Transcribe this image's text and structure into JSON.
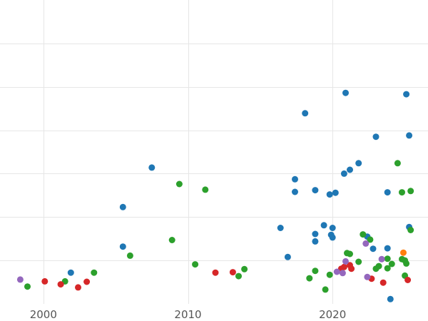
{
  "chart_data": {
    "type": "scatter",
    "title": "",
    "xlabel": "",
    "ylabel": "",
    "grid": true,
    "legend": "none",
    "xlim": [
      1997,
      2026.6
    ],
    "ylim": [
      0,
      7
    ],
    "x_ticks": [
      2000,
      2010,
      2020
    ],
    "x_tick_labels": [
      "2000",
      "2010",
      "2020"
    ],
    "y_gridlines": [
      1,
      2,
      3,
      4,
      5,
      6
    ],
    "colors": {
      "blue": "#1f77b4",
      "green": "#2ca02c",
      "red": "#d62728",
      "purple": "#9467bd",
      "orange": "#ff7f0e"
    },
    "series": [
      {
        "color": "#1f77b4",
        "points": [
          [
            2001.9,
            0.72
          ],
          [
            2005.5,
            1.32
          ],
          [
            2005.5,
            2.23
          ],
          [
            2007.5,
            3.14
          ],
          [
            2016.4,
            1.75
          ],
          [
            2016.9,
            1.08
          ],
          [
            2017.4,
            2.58
          ],
          [
            2017.4,
            2.87
          ],
          [
            2018.1,
            4.39
          ],
          [
            2018.8,
            1.44
          ],
          [
            2018.8,
            1.61
          ],
          [
            2018.8,
            2.62
          ],
          [
            2019.4,
            1.81
          ],
          [
            2019.8,
            2.52
          ],
          [
            2019.9,
            1.59
          ],
          [
            2020.0,
            1.75
          ],
          [
            2020.0,
            1.53
          ],
          [
            2020.2,
            2.56
          ],
          [
            2020.8,
            3.0
          ],
          [
            2020.9,
            4.86
          ],
          [
            2021.2,
            3.09
          ],
          [
            2021.8,
            3.24
          ],
          [
            2022.4,
            1.55
          ],
          [
            2022.8,
            1.27
          ],
          [
            2023.0,
            3.85
          ],
          [
            2023.8,
            2.57
          ],
          [
            2023.8,
            1.28
          ],
          [
            2024.0,
            0.11
          ],
          [
            2025.1,
            4.83
          ],
          [
            2025.3,
            1.77
          ],
          [
            2025.3,
            3.88
          ]
        ]
      },
      {
        "color": "#2ca02c",
        "points": [
          [
            1998.9,
            0.4
          ],
          [
            2001.5,
            0.52
          ],
          [
            2003.5,
            0.72
          ],
          [
            2006.0,
            1.11
          ],
          [
            2008.9,
            1.47
          ],
          [
            2009.4,
            2.76
          ],
          [
            2010.5,
            0.91
          ],
          [
            2011.2,
            2.63
          ],
          [
            2013.5,
            0.64
          ],
          [
            2013.9,
            0.8
          ],
          [
            2018.4,
            0.59
          ],
          [
            2018.8,
            0.76
          ],
          [
            2019.5,
            0.33
          ],
          [
            2019.8,
            0.67
          ],
          [
            2021.0,
            1.17
          ],
          [
            2021.2,
            1.15
          ],
          [
            2021.8,
            0.97
          ],
          [
            2022.1,
            1.6
          ],
          [
            2022.6,
            1.48
          ],
          [
            2023.0,
            0.81
          ],
          [
            2023.2,
            0.87
          ],
          [
            2023.8,
            0.82
          ],
          [
            2023.8,
            1.04
          ],
          [
            2024.1,
            0.92
          ],
          [
            2024.5,
            3.24
          ],
          [
            2024.8,
            2.57
          ],
          [
            2024.8,
            1.03
          ],
          [
            2025.0,
            1.0
          ],
          [
            2025.0,
            0.65
          ],
          [
            2025.1,
            0.93
          ],
          [
            2025.4,
            1.7
          ],
          [
            2025.4,
            2.6
          ]
        ]
      },
      {
        "color": "#d62728",
        "points": [
          [
            2000.1,
            0.52
          ],
          [
            2001.2,
            0.45
          ],
          [
            2002.4,
            0.38
          ],
          [
            2003.0,
            0.51
          ],
          [
            2011.9,
            0.72
          ],
          [
            2013.1,
            0.73
          ],
          [
            2020.6,
            0.81
          ],
          [
            2020.8,
            0.85
          ],
          [
            2021.2,
            0.89
          ],
          [
            2021.3,
            0.81
          ],
          [
            2022.7,
            0.58
          ],
          [
            2023.5,
            0.49
          ],
          [
            2025.2,
            0.55
          ]
        ]
      },
      {
        "color": "#9467bd",
        "points": [
          [
            1998.4,
            0.56
          ],
          [
            2020.3,
            0.74
          ],
          [
            2020.7,
            0.71
          ],
          [
            2020.9,
            0.98
          ],
          [
            2022.3,
            1.39
          ],
          [
            2022.4,
            0.62
          ],
          [
            2023.4,
            1.03
          ]
        ]
      },
      {
        "color": "#ff7f0e",
        "points": [
          [
            2024.9,
            1.18
          ]
        ]
      }
    ]
  }
}
